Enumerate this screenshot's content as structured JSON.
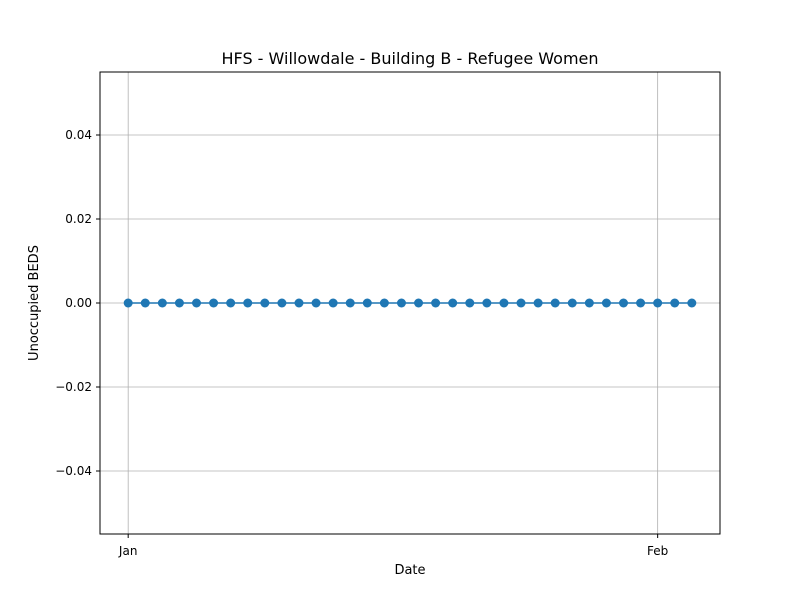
{
  "chart_data": {
    "type": "line",
    "title": "HFS - Willowdale - Building B - Refugee Women",
    "xlabel": "Date",
    "ylabel": "Unoccupied BEDS",
    "ylim": [
      -0.055,
      0.055
    ],
    "grid": true,
    "x_ticks": [
      {
        "value": "2023-01-01",
        "label": "Jan"
      },
      {
        "value": "2023-02-01",
        "label": "Feb"
      }
    ],
    "y_ticks": [
      {
        "value": -0.04,
        "label": "−0.04"
      },
      {
        "value": -0.02,
        "label": "−0.02"
      },
      {
        "value": 0.0,
        "label": "0.00"
      },
      {
        "value": 0.02,
        "label": "0.02"
      },
      {
        "value": 0.04,
        "label": "0.04"
      }
    ],
    "series": [
      {
        "color": "#1f77b4",
        "marker": "circle",
        "x": [
          "2023-01-01",
          "2023-01-02",
          "2023-01-03",
          "2023-01-04",
          "2023-01-05",
          "2023-01-06",
          "2023-01-07",
          "2023-01-08",
          "2023-01-09",
          "2023-01-10",
          "2023-01-11",
          "2023-01-12",
          "2023-01-13",
          "2023-01-14",
          "2023-01-15",
          "2023-01-16",
          "2023-01-17",
          "2023-01-18",
          "2023-01-19",
          "2023-01-20",
          "2023-01-21",
          "2023-01-22",
          "2023-01-23",
          "2023-01-24",
          "2023-01-25",
          "2023-01-26",
          "2023-01-27",
          "2023-01-28",
          "2023-01-29",
          "2023-01-30",
          "2023-01-31",
          "2023-02-01",
          "2023-02-02",
          "2023-02-03"
        ],
        "values": [
          0,
          0,
          0,
          0,
          0,
          0,
          0,
          0,
          0,
          0,
          0,
          0,
          0,
          0,
          0,
          0,
          0,
          0,
          0,
          0,
          0,
          0,
          0,
          0,
          0,
          0,
          0,
          0,
          0,
          0,
          0,
          0,
          0,
          0
        ]
      }
    ]
  }
}
